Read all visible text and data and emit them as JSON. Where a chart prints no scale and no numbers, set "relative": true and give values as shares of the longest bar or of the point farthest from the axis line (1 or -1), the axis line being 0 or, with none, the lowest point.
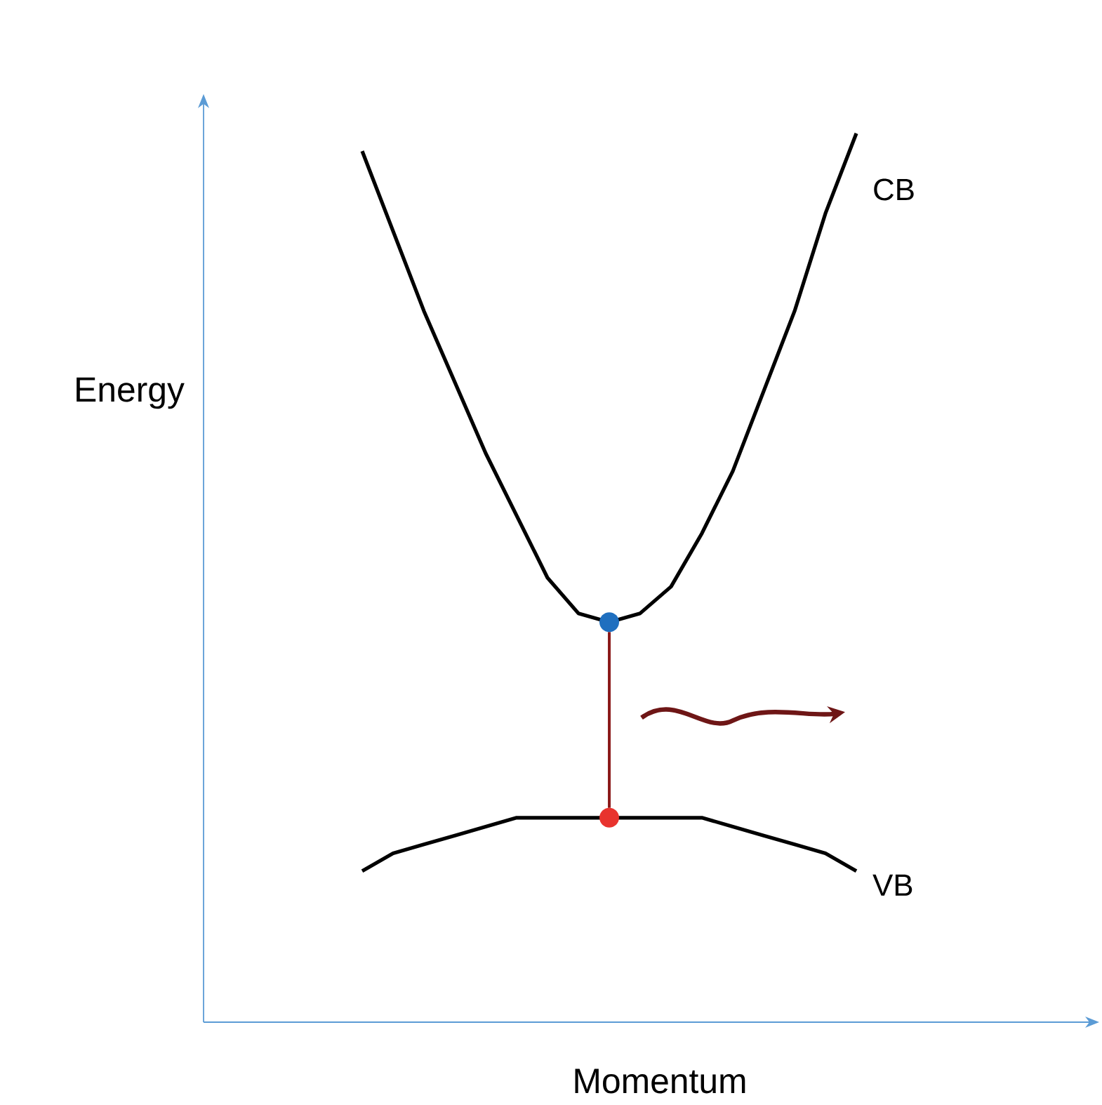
{
  "chart_data": {
    "type": "line",
    "relative": true,
    "xlabel": "Momentum",
    "ylabel": "Energy",
    "categories": [
      null,
      null,
      null,
      null,
      null,
      null,
      null,
      null,
      null,
      null,
      null,
      null,
      null,
      null,
      null,
      null,
      null
    ],
    "series": [
      {
        "name": "CB",
        "color": "#000000",
        "values": [
          0.98,
          0.89,
          0.8,
          0.72,
          0.64,
          0.57,
          0.5,
          0.46,
          0.45,
          0.46,
          0.49,
          0.55,
          0.62,
          0.71,
          0.8,
          0.91,
          1
        ]
      },
      {
        "name": "VB",
        "color": "#000000",
        "values": [
          0.17,
          0.19,
          0.2,
          0.21,
          0.22,
          0.23,
          0.23,
          0.23,
          0.23,
          0.23,
          0.23,
          0.23,
          0.22,
          0.21,
          0.2,
          0.19,
          0.17
        ]
      }
    ]
  }
}
